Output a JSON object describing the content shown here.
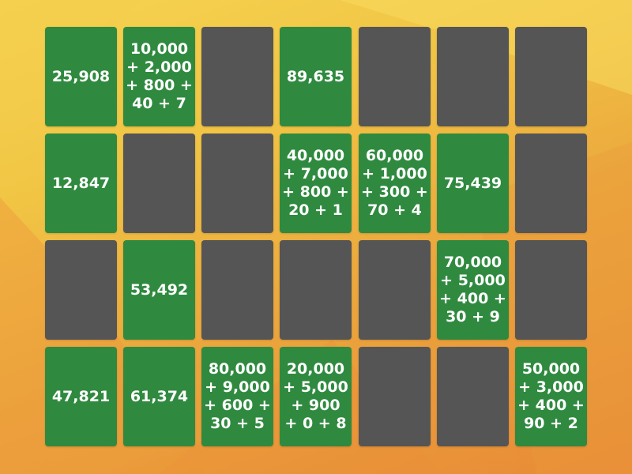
{
  "colors": {
    "face_up": "#2f8a3f",
    "face_down": "#555555",
    "background_top": "#f6d451",
    "background_bottom": "#e88a36",
    "text": "#ffffff"
  },
  "cards": [
    {
      "state": "face-up",
      "text": "25,908"
    },
    {
      "state": "face-up",
      "text": "10,000\n+ 2,000\n+ 800 +\n40 + 7"
    },
    {
      "state": "face-down",
      "text": ""
    },
    {
      "state": "face-up",
      "text": "89,635"
    },
    {
      "state": "face-down",
      "text": ""
    },
    {
      "state": "face-down",
      "text": ""
    },
    {
      "state": "face-down",
      "text": ""
    },
    {
      "state": "face-up",
      "text": "12,847"
    },
    {
      "state": "face-down",
      "text": ""
    },
    {
      "state": "face-down",
      "text": ""
    },
    {
      "state": "face-up",
      "text": "40,000\n+ 7,000\n+ 800 +\n20 + 1"
    },
    {
      "state": "face-up",
      "text": "60,000\n+ 1,000\n+ 300 +\n70 + 4"
    },
    {
      "state": "face-up",
      "text": "75,439"
    },
    {
      "state": "face-down",
      "text": ""
    },
    {
      "state": "face-down",
      "text": ""
    },
    {
      "state": "face-up",
      "text": "53,492"
    },
    {
      "state": "face-down",
      "text": ""
    },
    {
      "state": "face-down",
      "text": ""
    },
    {
      "state": "face-down",
      "text": ""
    },
    {
      "state": "face-up",
      "text": "70,000\n+ 5,000\n+ 400 +\n30 + 9"
    },
    {
      "state": "face-down",
      "text": ""
    },
    {
      "state": "face-up",
      "text": "47,821"
    },
    {
      "state": "face-up",
      "text": "61,374"
    },
    {
      "state": "face-up",
      "text": "80,000\n+ 9,000\n+ 600 +\n30 + 5"
    },
    {
      "state": "face-up",
      "text": "20,000\n+ 5,000\n+ 900\n+ 0 + 8"
    },
    {
      "state": "face-down",
      "text": ""
    },
    {
      "state": "face-down",
      "text": ""
    },
    {
      "state": "face-up",
      "text": "50,000\n+ 3,000\n+ 400 +\n90 + 2"
    }
  ]
}
